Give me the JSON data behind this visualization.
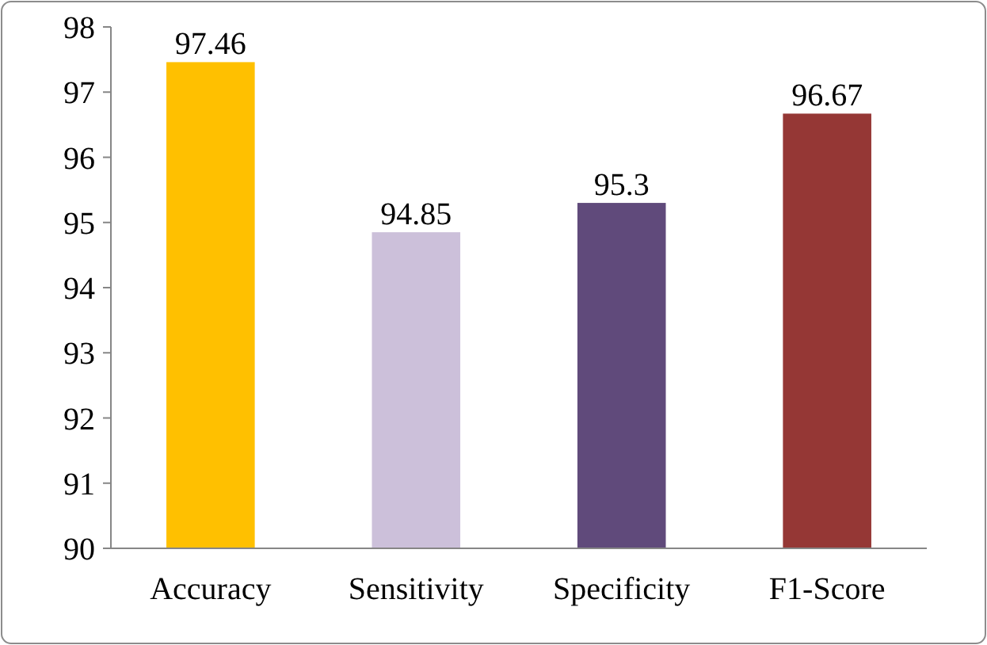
{
  "chart_data": {
    "type": "bar",
    "categories": [
      "Accuracy",
      "Sensitivity",
      "Specificity",
      "F1-Score"
    ],
    "values": [
      97.46,
      94.85,
      95.3,
      96.67
    ],
    "colors": [
      "#ffc000",
      "#ccc0da",
      "#604a7b",
      "#953735"
    ],
    "ylim": [
      90,
      98
    ],
    "yticks": [
      90,
      91,
      92,
      93,
      94,
      95,
      96,
      97,
      98
    ],
    "grid": false,
    "data_labels": true
  }
}
